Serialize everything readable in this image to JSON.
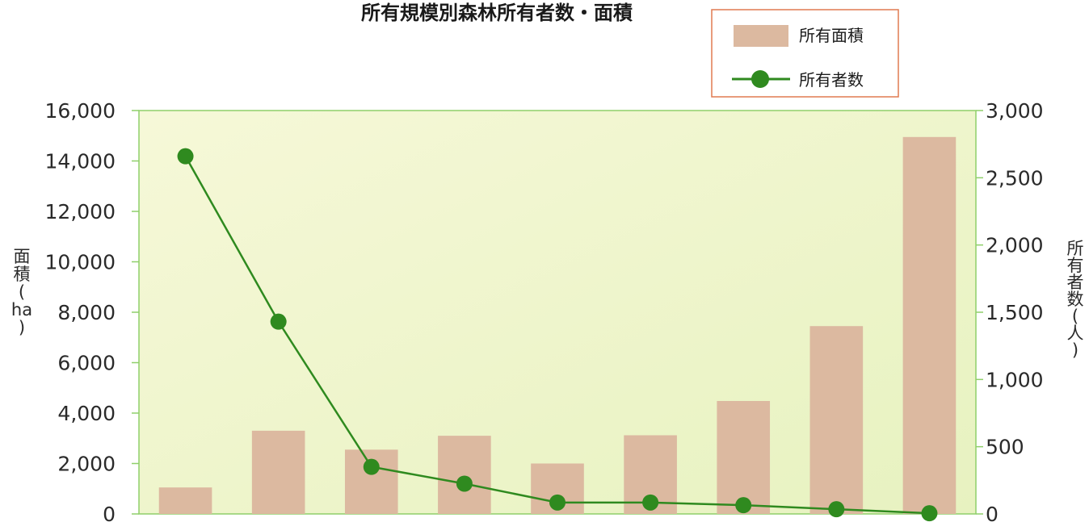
{
  "chart_data": {
    "type": "bar",
    "title": "所有規模別森林所有者数・面積",
    "categories": [
      "",
      "",
      "",
      "",
      "",
      "",
      "",
      "",
      ""
    ],
    "series": [
      {
        "name": "所有面積",
        "type": "bar",
        "axis": "left",
        "color": "#dcb9a0",
        "values": [
          1050,
          3300,
          2550,
          3100,
          2000,
          3120,
          4480,
          7450,
          14950
        ]
      },
      {
        "name": "所有者数",
        "type": "line",
        "axis": "right",
        "color": "#2f8a1f",
        "values": [
          2660,
          1430,
          350,
          225,
          85,
          85,
          65,
          35,
          5
        ]
      }
    ],
    "y_left": {
      "label_chars": [
        "面",
        "積",
        "(",
        "ha",
        ")"
      ],
      "ylim": [
        0,
        16000
      ],
      "ticks": [
        "0",
        "2,000",
        "4,000",
        "6,000",
        "8,000",
        "10,000",
        "12,000",
        "14,000",
        "16,000"
      ],
      "tick_values": [
        0,
        2000,
        4000,
        6000,
        8000,
        10000,
        12000,
        14000,
        16000
      ]
    },
    "y_right": {
      "label_chars": [
        "所",
        "有",
        "者",
        "数",
        "(",
        "人",
        ")"
      ],
      "ylim": [
        0,
        3000
      ],
      "ticks": [
        "0",
        "500",
        "1,000",
        "1,500",
        "2,000",
        "2,500",
        "3,000"
      ],
      "tick_values": [
        0,
        500,
        1000,
        1500,
        2000,
        2500,
        3000
      ]
    },
    "legend_position": "top-right",
    "plot_background": "#eef5cf",
    "plot_border": "#8fcf6a",
    "legend_border": "#e07a50",
    "grid": false
  }
}
